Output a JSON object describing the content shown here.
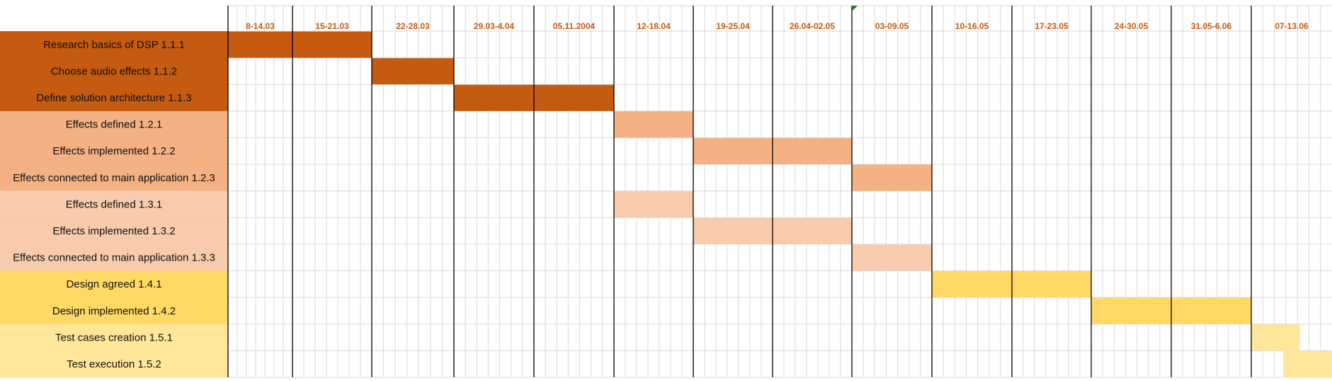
{
  "chart_data": {
    "type": "gantt",
    "periods": [
      "8-14.03",
      "15-21.03",
      "22-28.03",
      "29.03-4.04",
      "05.11.2004",
      "12-18.04",
      "19-25.04",
      "26.04-02.05",
      "03-09.05",
      "10-16.05",
      "17-23.05",
      "24-30.05",
      "31.05-6.06",
      "07-13.06"
    ],
    "tasks": [
      {
        "label": "Research basics of DSP 1.1.1",
        "start": 0,
        "end": 2,
        "color": "#C55A11"
      },
      {
        "label": "Choose audio effects 1.1.2",
        "start": 2,
        "end": 3,
        "color": "#C55A11"
      },
      {
        "label": "Define solution architecture 1.1.3",
        "start": 3,
        "end": 5,
        "color": "#C55A11"
      },
      {
        "label": "Effects defined 1.2.1",
        "start": 5,
        "end": 6,
        "color": "#F4B183"
      },
      {
        "label": "Effects implemented 1.2.2",
        "start": 6,
        "end": 8,
        "color": "#F4B183"
      },
      {
        "label": "Effects connected to main application 1.2.3",
        "start": 8,
        "end": 9,
        "color": "#F4B183"
      },
      {
        "label": "Effects defined 1.3.1",
        "start": 5,
        "end": 6,
        "color": "#F8CBAD"
      },
      {
        "label": "Effects implemented 1.3.2",
        "start": 6,
        "end": 8,
        "color": "#F8CBAD"
      },
      {
        "label": "Effects connected to main application 1.3.3",
        "start": 8,
        "end": 9,
        "color": "#F8CBAD"
      },
      {
        "label": "Design agreed 1.4.1",
        "start": 9,
        "end": 11,
        "color": "#FFD966"
      },
      {
        "label": "Design implemented 1.4.2",
        "start": 11,
        "end": 13,
        "color": "#FFD966"
      },
      {
        "label": "Test cases creation 1.5.1",
        "start": 13,
        "end": 13.6,
        "color": "#FFE699"
      },
      {
        "label": "Test execution 1.5.2",
        "start": 13.4,
        "end": 14,
        "color": "#FFE699"
      }
    ],
    "colors": {
      "period_label": "#C55A11",
      "grid": "#D9D9D9",
      "divider": "#000000"
    }
  }
}
